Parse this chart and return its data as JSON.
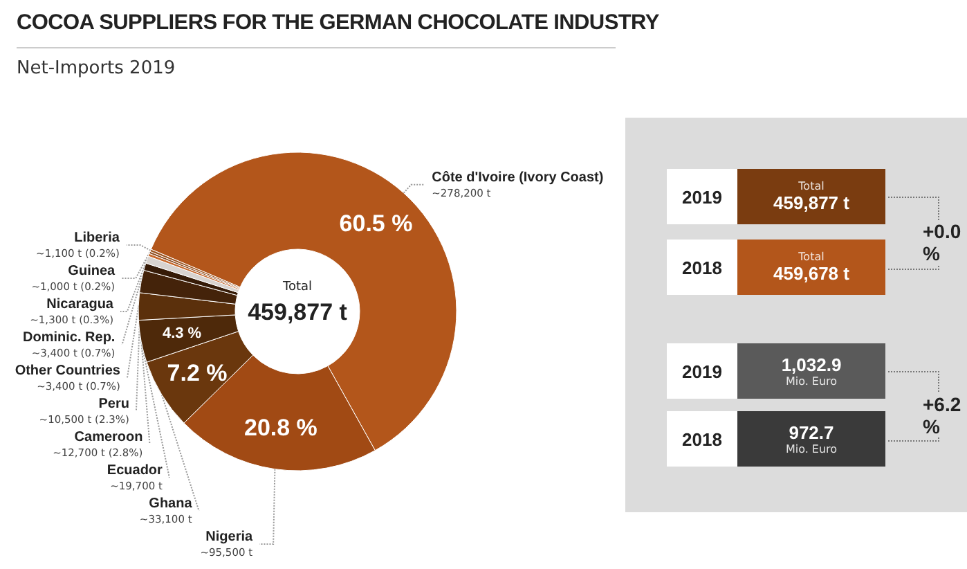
{
  "chart_data": [
    {
      "type": "donut",
      "title": "COCOA SUPPLIERS FOR THE GERMAN CHOCOLATE INDUSTRY",
      "subtitle": "Net-Imports 2019",
      "categories": [
        "Côte d'Ivoire (Ivory Coast)",
        "Nigeria",
        "Ghana",
        "Ecuador",
        "Cameroon",
        "Peru",
        "Other Countries",
        "Dominic. Rep.",
        "Nicaragua",
        "Guinea",
        "Liberia"
      ],
      "values": [
        278200,
        95500,
        33100,
        19700,
        12700,
        10500,
        3400,
        3400,
        1300,
        1000,
        1100
      ],
      "value_labels": [
        "~278,200 t",
        "~95,500 t",
        "~33,100 t",
        "~19,700 t",
        "~12,700 t (2.8%)",
        "~10,500 t (2.3%)",
        "~3,400 t (0.7%)",
        "~3,400 t (0.7%)",
        "~1,300 t (0.3%)",
        "~1,000 t (0.2%)",
        "~1,100 t (0.2%)"
      ],
      "colors": [
        "#b3561b",
        "#a14a14",
        "#6a370d",
        "#4e290a",
        "#5b300c",
        "#44230a",
        "#361b07",
        "#d8d3cf",
        "#c8692c",
        "#8a4a1e",
        "#9c5420"
      ],
      "annotations": [
        "Total",
        "459,877 t",
        {
          "text": "60.5 %",
          "x": "Côte d'Ivoire (Ivory Coast)"
        },
        {
          "text": "20.8 %",
          "x": "Nigeria"
        },
        {
          "text": "7.2 %",
          "x": "Ghana"
        },
        {
          "text": "4.3 %",
          "x": "Ecuador"
        }
      ]
    },
    {
      "type": "other",
      "categories": [
        "2019",
        "2018",
        "2019",
        "2018"
      ],
      "value_labels": [
        "459,877 t",
        "459,678 t",
        "1,032.9",
        "972.7"
      ],
      "annotations": [
        "Total",
        "Total",
        "Mio. Euro",
        "Mio. Euro",
        "+0.0 %",
        "+6.2 %"
      ]
    }
  ]
}
